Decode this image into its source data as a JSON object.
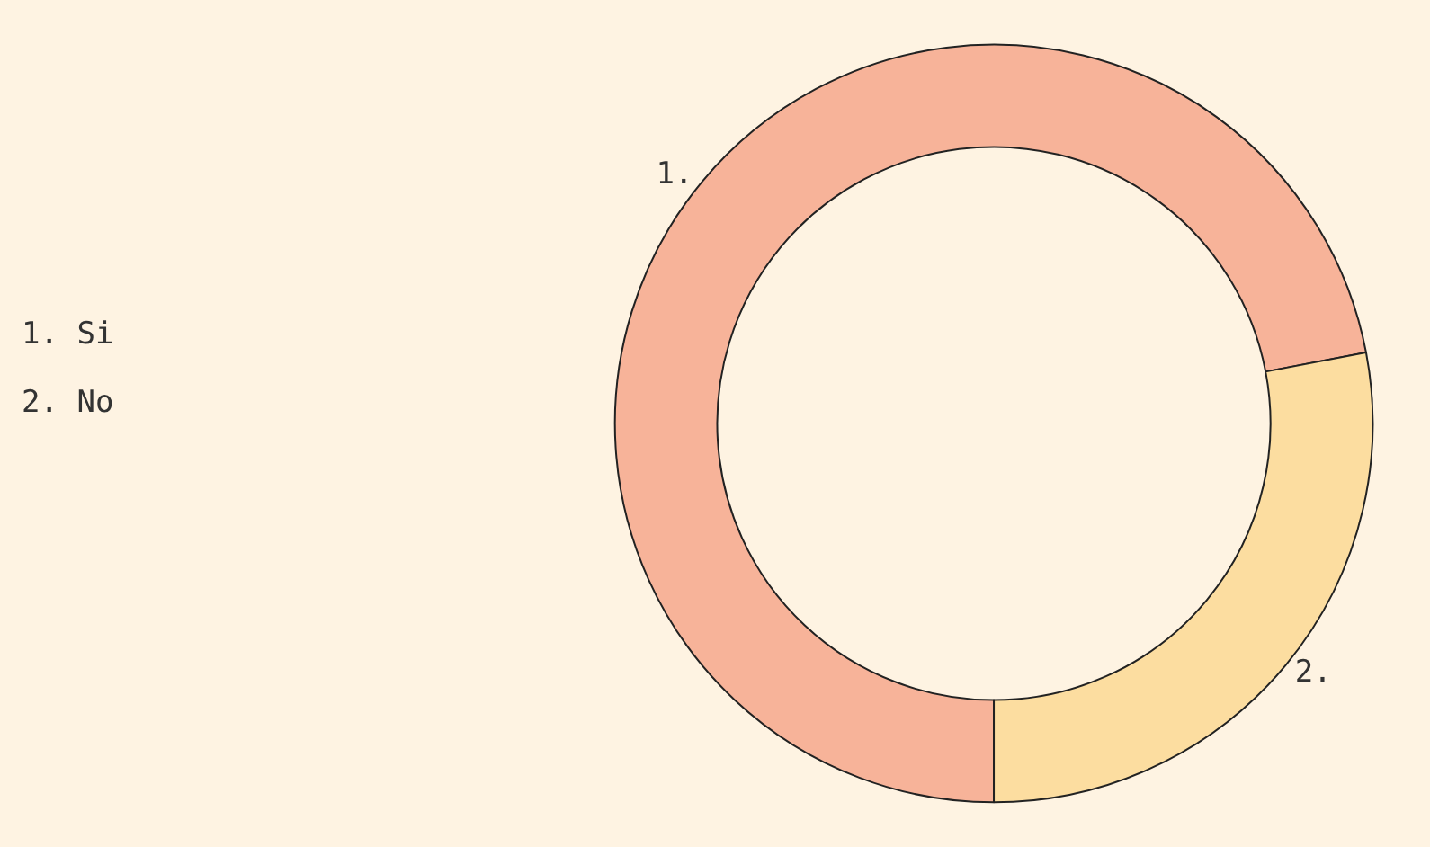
{
  "chart_data": {
    "type": "donut",
    "categories": [
      "1.",
      "2."
    ],
    "values": [
      72,
      28
    ],
    "colors": [
      "#f7b399",
      "#fcdda0"
    ],
    "annotations": [
      "1. Si",
      "2. No"
    ]
  }
}
